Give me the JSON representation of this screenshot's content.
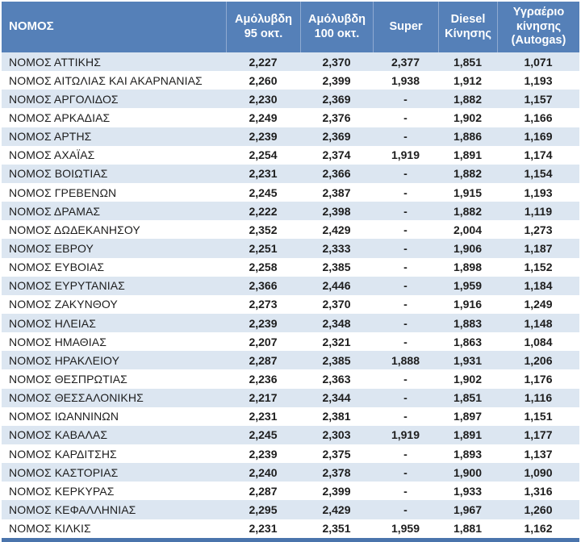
{
  "colors": {
    "header_bg": "#5580B8",
    "band_row_bg": "#DCE6F1",
    "plain_row_bg": "#FFFFFF",
    "header_divider": "#8FAAD1",
    "bottom_strip": "#4A74AC",
    "body_text": "#1D1D1D",
    "header_text": "#FFFFFF"
  },
  "chart_data": {
    "type": "table",
    "title": "",
    "columns": [
      "ΝΟΜΟΣ",
      "Αμόλυβδη 95 οκτ.",
      "Αμόλυβδη 100 οκτ.",
      "Super",
      "Diesel Κίνησης",
      "Υγραέριο κίνησης (Autogas)"
    ],
    "rows": [
      {
        "name": "ΝΟΜΟΣ ΑΤΤΙΚΗΣ",
        "values": [
          "2,227",
          "2,370",
          "2,377",
          "1,851",
          "1,071"
        ]
      },
      {
        "name": "ΝΟΜΟΣ ΑΙΤΩΛΙΑΣ ΚΑΙ ΑΚΑΡΝΑΝΙΑΣ",
        "values": [
          "2,260",
          "2,399",
          "1,938",
          "1,912",
          "1,193"
        ]
      },
      {
        "name": "ΝΟΜΟΣ ΑΡΓΟΛΙΔΟΣ",
        "values": [
          "2,230",
          "2,369",
          "-",
          "1,882",
          "1,157"
        ]
      },
      {
        "name": "ΝΟΜΟΣ ΑΡΚΑΔΙΑΣ",
        "values": [
          "2,249",
          "2,376",
          "-",
          "1,902",
          "1,166"
        ]
      },
      {
        "name": "ΝΟΜΟΣ ΑΡΤΗΣ",
        "values": [
          "2,239",
          "2,369",
          "-",
          "1,886",
          "1,169"
        ]
      },
      {
        "name": "ΝΟΜΟΣ ΑΧΑΪΑΣ",
        "values": [
          "2,254",
          "2,374",
          "1,919",
          "1,891",
          "1,174"
        ]
      },
      {
        "name": "ΝΟΜΟΣ ΒΟΙΩΤΙΑΣ",
        "values": [
          "2,231",
          "2,366",
          "-",
          "1,882",
          "1,154"
        ]
      },
      {
        "name": "ΝΟΜΟΣ ΓΡΕΒΕΝΩΝ",
        "values": [
          "2,245",
          "2,387",
          "-",
          "1,915",
          "1,193"
        ]
      },
      {
        "name": "ΝΟΜΟΣ ΔΡΑΜΑΣ",
        "values": [
          "2,222",
          "2,398",
          "-",
          "1,882",
          "1,119"
        ]
      },
      {
        "name": "ΝΟΜΟΣ ΔΩΔΕΚΑΝΗΣΟΥ",
        "values": [
          "2,352",
          "2,429",
          "-",
          "2,004",
          "1,273"
        ]
      },
      {
        "name": "ΝΟΜΟΣ ΕΒΡΟΥ",
        "values": [
          "2,251",
          "2,333",
          "-",
          "1,906",
          "1,187"
        ]
      },
      {
        "name": "ΝΟΜΟΣ ΕΥΒΟΙΑΣ",
        "values": [
          "2,258",
          "2,385",
          "-",
          "1,898",
          "1,152"
        ]
      },
      {
        "name": "ΝΟΜΟΣ ΕΥΡΥΤΑΝΙΑΣ",
        "values": [
          "2,366",
          "2,446",
          "-",
          "1,959",
          "1,184"
        ]
      },
      {
        "name": "ΝΟΜΟΣ ΖΑΚΥΝΘΟΥ",
        "values": [
          "2,273",
          "2,370",
          "-",
          "1,916",
          "1,249"
        ]
      },
      {
        "name": "ΝΟΜΟΣ ΗΛΕΙΑΣ",
        "values": [
          "2,239",
          "2,348",
          "-",
          "1,883",
          "1,148"
        ]
      },
      {
        "name": "ΝΟΜΟΣ ΗΜΑΘΙΑΣ",
        "values": [
          "2,207",
          "2,321",
          "-",
          "1,863",
          "1,084"
        ]
      },
      {
        "name": "ΝΟΜΟΣ ΗΡΑΚΛΕΙΟΥ",
        "values": [
          "2,287",
          "2,385",
          "1,888",
          "1,931",
          "1,206"
        ]
      },
      {
        "name": "ΝΟΜΟΣ ΘΕΣΠΡΩΤΙΑΣ",
        "values": [
          "2,236",
          "2,363",
          "-",
          "1,902",
          "1,176"
        ]
      },
      {
        "name": "ΝΟΜΟΣ ΘΕΣΣΑΛΟΝΙΚΗΣ",
        "values": [
          "2,217",
          "2,344",
          "-",
          "1,851",
          "1,116"
        ]
      },
      {
        "name": "ΝΟΜΟΣ ΙΩΑΝΝΙΝΩΝ",
        "values": [
          "2,231",
          "2,381",
          "-",
          "1,897",
          "1,151"
        ]
      },
      {
        "name": "ΝΟΜΟΣ ΚΑΒΑΛΑΣ",
        "values": [
          "2,245",
          "2,303",
          "1,919",
          "1,891",
          "1,177"
        ]
      },
      {
        "name": "ΝΟΜΟΣ ΚΑΡΔΙΤΣΗΣ",
        "values": [
          "2,239",
          "2,375",
          "-",
          "1,893",
          "1,137"
        ]
      },
      {
        "name": "ΝΟΜΟΣ ΚΑΣΤΟΡΙΑΣ",
        "values": [
          "2,240",
          "2,378",
          "-",
          "1,900",
          "1,090"
        ]
      },
      {
        "name": "ΝΟΜΟΣ ΚΕΡΚΥΡΑΣ",
        "values": [
          "2,287",
          "2,399",
          "-",
          "1,933",
          "1,316"
        ]
      },
      {
        "name": "ΝΟΜΟΣ ΚΕΦΑΛΛΗΝΙΑΣ",
        "values": [
          "2,295",
          "2,429",
          "-",
          "1,967",
          "1,260"
        ]
      },
      {
        "name": "ΝΟΜΟΣ ΚΙΛΚΙΣ",
        "values": [
          "2,231",
          "2,351",
          "1,959",
          "1,881",
          "1,162"
        ]
      }
    ]
  }
}
